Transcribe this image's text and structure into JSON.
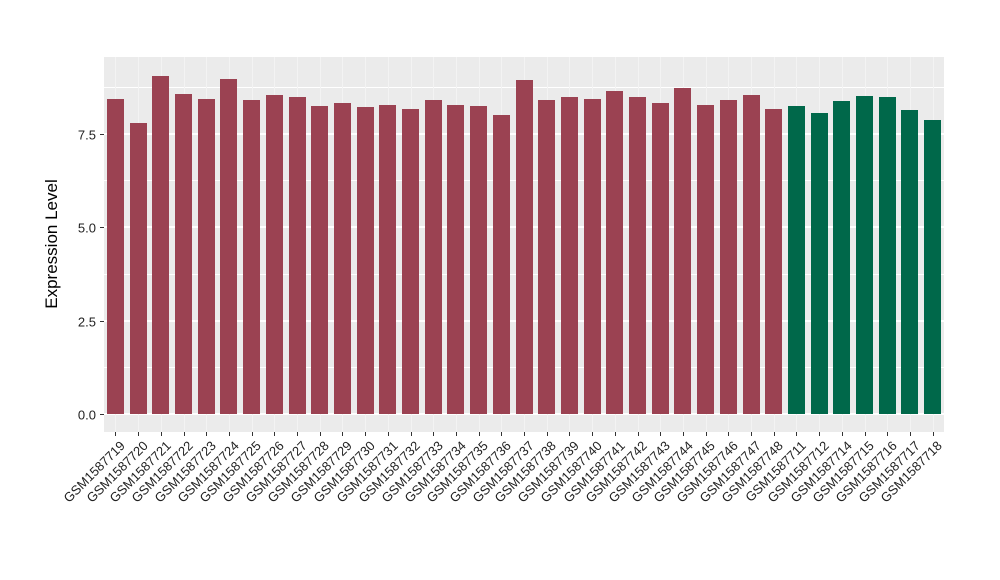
{
  "chart_data": {
    "type": "bar",
    "title": "",
    "xlabel": "",
    "ylabel": "Expression Level",
    "ylim": [
      0,
      9.5
    ],
    "grid": true,
    "legend_position": "none",
    "panel_background": "#EBEBEB",
    "gridline_color": "#FFFFFF",
    "y_ticks": [
      {
        "label": "0.0",
        "value": 0.0
      },
      {
        "label": "2.5",
        "value": 2.5
      },
      {
        "label": "5.0",
        "value": 5.0
      },
      {
        "label": "7.5",
        "value": 7.5
      }
    ],
    "y_minor_ticks": [
      1.25,
      3.75,
      6.25,
      8.75
    ],
    "colors": {
      "group_red": "#9B4252",
      "group_green": "#00684A"
    },
    "bars": [
      {
        "label": "GSM1587719",
        "value": 8.44,
        "group": "group_red"
      },
      {
        "label": "GSM1587720",
        "value": 7.79,
        "group": "group_red"
      },
      {
        "label": "GSM1587721",
        "value": 9.05,
        "group": "group_red"
      },
      {
        "label": "GSM1587722",
        "value": 8.55,
        "group": "group_red"
      },
      {
        "label": "GSM1587723",
        "value": 8.44,
        "group": "group_red"
      },
      {
        "label": "GSM1587724",
        "value": 8.97,
        "group": "group_red"
      },
      {
        "label": "GSM1587725",
        "value": 8.41,
        "group": "group_red"
      },
      {
        "label": "GSM1587726",
        "value": 8.54,
        "group": "group_red"
      },
      {
        "label": "GSM1587727",
        "value": 8.48,
        "group": "group_red"
      },
      {
        "label": "GSM1587728",
        "value": 8.25,
        "group": "group_red"
      },
      {
        "label": "GSM1587729",
        "value": 8.32,
        "group": "group_red"
      },
      {
        "label": "GSM1587730",
        "value": 8.22,
        "group": "group_red"
      },
      {
        "label": "GSM1587731",
        "value": 8.28,
        "group": "group_red"
      },
      {
        "label": "GSM1587732",
        "value": 8.16,
        "group": "group_red"
      },
      {
        "label": "GSM1587733",
        "value": 8.41,
        "group": "group_red"
      },
      {
        "label": "GSM1587734",
        "value": 8.27,
        "group": "group_red"
      },
      {
        "label": "GSM1587735",
        "value": 8.24,
        "group": "group_red"
      },
      {
        "label": "GSM1587736",
        "value": 8.01,
        "group": "group_red"
      },
      {
        "label": "GSM1587737",
        "value": 8.93,
        "group": "group_red"
      },
      {
        "label": "GSM1587738",
        "value": 8.4,
        "group": "group_red"
      },
      {
        "label": "GSM1587739",
        "value": 8.48,
        "group": "group_red"
      },
      {
        "label": "GSM1587740",
        "value": 8.42,
        "group": "group_red"
      },
      {
        "label": "GSM1587741",
        "value": 8.64,
        "group": "group_red"
      },
      {
        "label": "GSM1587742",
        "value": 8.48,
        "group": "group_red"
      },
      {
        "label": "GSM1587743",
        "value": 8.33,
        "group": "group_red"
      },
      {
        "label": "GSM1587744",
        "value": 8.72,
        "group": "group_red"
      },
      {
        "label": "GSM1587745",
        "value": 8.26,
        "group": "group_red"
      },
      {
        "label": "GSM1587746",
        "value": 8.4,
        "group": "group_red"
      },
      {
        "label": "GSM1587747",
        "value": 8.53,
        "group": "group_red"
      },
      {
        "label": "GSM1587748",
        "value": 8.15,
        "group": "group_red"
      },
      {
        "label": "GSM1587711",
        "value": 8.25,
        "group": "group_green"
      },
      {
        "label": "GSM1587712",
        "value": 8.06,
        "group": "group_green"
      },
      {
        "label": "GSM1587714",
        "value": 8.38,
        "group": "group_green"
      },
      {
        "label": "GSM1587715",
        "value": 8.5,
        "group": "group_green"
      },
      {
        "label": "GSM1587716",
        "value": 8.47,
        "group": "group_green"
      },
      {
        "label": "GSM1587717",
        "value": 8.14,
        "group": "group_green"
      },
      {
        "label": "GSM1587718",
        "value": 7.86,
        "group": "group_green"
      }
    ]
  }
}
